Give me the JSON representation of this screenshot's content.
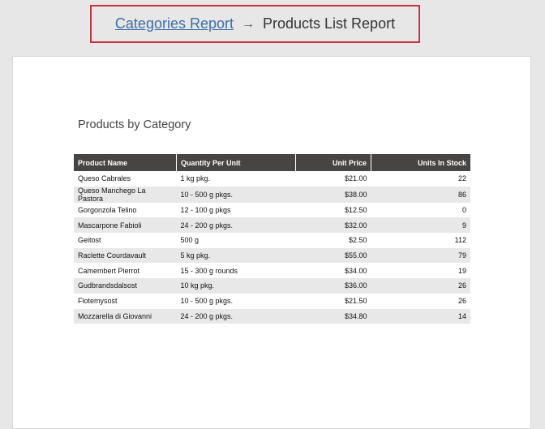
{
  "breadcrumb": {
    "parent_label": "Categories Report",
    "arrow": "→",
    "current_label": "Products List Report"
  },
  "report": {
    "title": "Products by Category",
    "columns": [
      "Product Name",
      "Quantity Per Unit",
      "Unit Price",
      "Units In Stock"
    ],
    "rows": [
      [
        "Queso Cabrales",
        "1 kg pkg.",
        "$21.00",
        "22"
      ],
      [
        "Queso Manchego La Pastora",
        "10 - 500 g pkgs.",
        "$38.00",
        "86"
      ],
      [
        "Gorgonzola Telino",
        "12 - 100 g pkgs",
        "$12.50",
        "0"
      ],
      [
        "Mascarpone Fabioli",
        "24 - 200 g pkgs.",
        "$32.00",
        "9"
      ],
      [
        "Geitost",
        "500 g",
        "$2.50",
        "112"
      ],
      [
        "Raclette Courdavault",
        "5 kg pkg.",
        "$55.00",
        "79"
      ],
      [
        "Camembert Pierrot",
        "15 - 300 g rounds",
        "$34.00",
        "19"
      ],
      [
        "Gudbrandsdalsost",
        "10 kg pkg.",
        "$36.00",
        "26"
      ],
      [
        "Flotemysost",
        "10 - 500 g pkgs.",
        "$21.50",
        "26"
      ],
      [
        "Mozzarella di Giovanni",
        "24 - 200 g pkgs.",
        "$34.80",
        "14"
      ]
    ]
  },
  "colors": {
    "breadcrumb_border": "#c8323c",
    "link": "#3d6fa6",
    "header_bg": "#474544",
    "row_alt_bg": "#e8e8e8",
    "viewer_bg": "#e7e7e7"
  }
}
